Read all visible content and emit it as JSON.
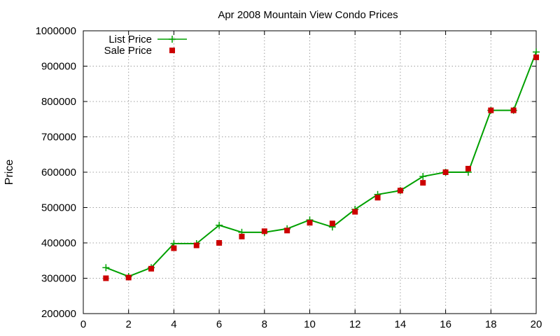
{
  "chart_data": {
    "type": "line",
    "title": "Apr 2008 Mountain View Condo Prices",
    "xlabel": "",
    "ylabel": "Price",
    "xlim": [
      0,
      20
    ],
    "ylim": [
      200000,
      1000000
    ],
    "xticks": [
      0,
      2,
      4,
      6,
      8,
      10,
      12,
      14,
      16,
      18,
      20
    ],
    "yticks": [
      200000,
      300000,
      400000,
      500000,
      600000,
      700000,
      800000,
      900000,
      1000000
    ],
    "grid": true,
    "legend_position": "top-left",
    "series": [
      {
        "name": "List Price",
        "style": "line-with-plus-markers",
        "color": "#00a000",
        "x": [
          1,
          2,
          3,
          4,
          5,
          6,
          7,
          8,
          9,
          10,
          11,
          12,
          13,
          14,
          15,
          16,
          17,
          18,
          19,
          20
        ],
        "values": [
          330000,
          305000,
          330000,
          398000,
          398000,
          450000,
          430000,
          430000,
          440000,
          465000,
          445000,
          495000,
          537000,
          548000,
          588000,
          600000,
          600000,
          775000,
          775000,
          940000
        ]
      },
      {
        "name": "Sale Price",
        "style": "square-markers",
        "color": "#cc0000",
        "x": [
          1,
          2,
          3,
          4,
          5,
          6,
          7,
          8,
          9,
          10,
          11,
          12,
          13,
          14,
          15,
          16,
          17,
          18,
          19,
          20
        ],
        "values": [
          300000,
          302000,
          327000,
          385000,
          393000,
          400000,
          418000,
          433000,
          435000,
          457000,
          455000,
          488000,
          528000,
          548000,
          570000,
          600000,
          610000,
          775000,
          775000,
          925000
        ]
      }
    ]
  }
}
